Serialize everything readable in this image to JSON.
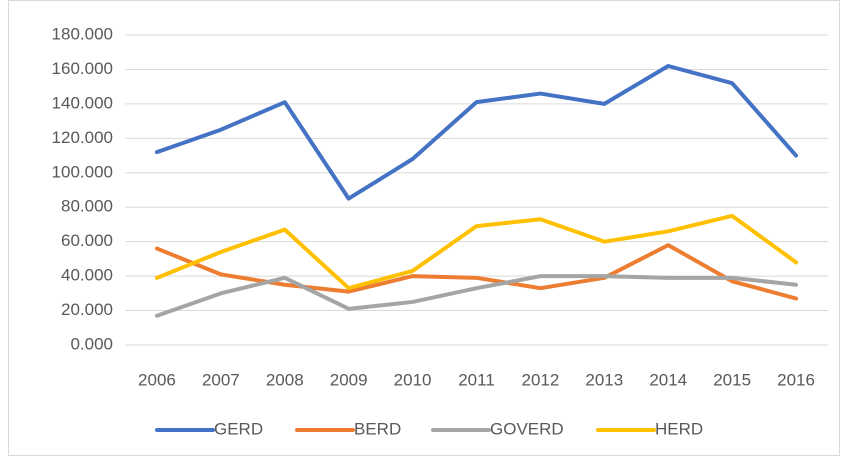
{
  "chart_data": {
    "type": "line",
    "categories": [
      "2006",
      "2007",
      "2008",
      "2009",
      "2010",
      "2011",
      "2012",
      "2013",
      "2014",
      "2015",
      "2016"
    ],
    "series": [
      {
        "name": "GERD",
        "color": "#4472c4",
        "values": [
          112,
          125,
          141,
          85,
          108,
          141,
          146,
          140,
          162,
          152,
          110
        ]
      },
      {
        "name": "BERD",
        "color": "#ed7d31",
        "values": [
          56,
          41,
          35,
          31,
          40,
          39,
          33,
          39,
          58,
          37,
          27
        ]
      },
      {
        "name": "GOVERD",
        "color": "#a5a5a5",
        "values": [
          17,
          30,
          39,
          21,
          25,
          33,
          40,
          40,
          39,
          39,
          35
        ]
      },
      {
        "name": "HERD",
        "color": "#ffc000",
        "values": [
          39,
          54,
          67,
          33,
          43,
          69,
          73,
          60,
          66,
          75,
          48
        ]
      }
    ],
    "ylim": [
      0,
      180
    ],
    "yticks": [
      {
        "value": 0,
        "label": "0.000"
      },
      {
        "value": 20,
        "label": "20.000"
      },
      {
        "value": 40,
        "label": "40.000"
      },
      {
        "value": 60,
        "label": "60.000"
      },
      {
        "value": 80,
        "label": "80.000"
      },
      {
        "value": 100,
        "label": "100.000"
      },
      {
        "value": 120,
        "label": "120.000"
      },
      {
        "value": 140,
        "label": "140.000"
      },
      {
        "value": 160,
        "label": "160.000"
      },
      {
        "value": 180,
        "label": "180.000"
      }
    ],
    "grid": true,
    "legend": "bottom"
  }
}
